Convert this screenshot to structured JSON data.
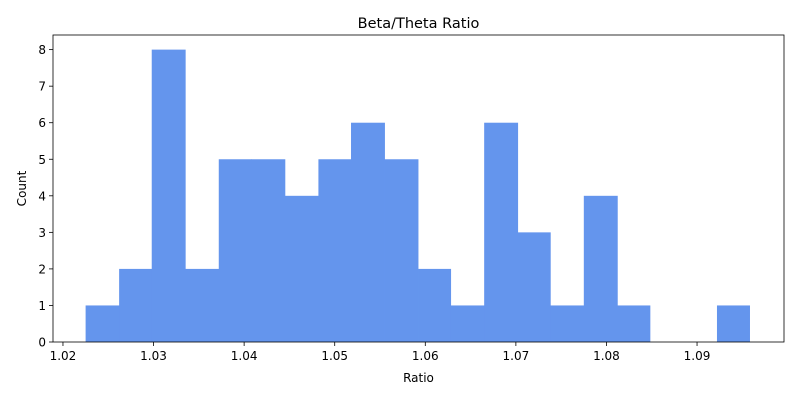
{
  "chart_data": {
    "type": "bar",
    "title": "Beta/Theta Ratio",
    "xlabel": "Ratio",
    "ylabel": "Count",
    "xlim": [
      1.0189,
      1.0996
    ],
    "ylim": [
      0,
      8.4
    ],
    "bar_color": "#6495ED",
    "x_ticks": [
      1.02,
      1.03,
      1.04,
      1.05,
      1.06,
      1.07,
      1.08,
      1.09
    ],
    "x_tick_labels": [
      "1.02",
      "1.03",
      "1.04",
      "1.05",
      "1.06",
      "1.07",
      "1.08",
      "1.09"
    ],
    "y_ticks": [
      0,
      1,
      2,
      3,
      4,
      5,
      6,
      7,
      8
    ],
    "y_tick_labels": [
      "0",
      "1",
      "2",
      "3",
      "4",
      "5",
      "6",
      "7",
      "8"
    ],
    "bin_edges": [
      1.0225,
      1.0262,
      1.0298,
      1.0335,
      1.0372,
      1.0408,
      1.0445,
      1.0482,
      1.0518,
      1.0555,
      1.0592,
      1.0628,
      1.0665,
      1.0702,
      1.0738,
      1.0775,
      1.0812,
      1.0848,
      1.0885,
      1.0922,
      1.0958
    ],
    "values": [
      1,
      2,
      8,
      2,
      5,
      5,
      4,
      5,
      6,
      5,
      2,
      1,
      6,
      3,
      1,
      4,
      1,
      0,
      0,
      1
    ]
  }
}
